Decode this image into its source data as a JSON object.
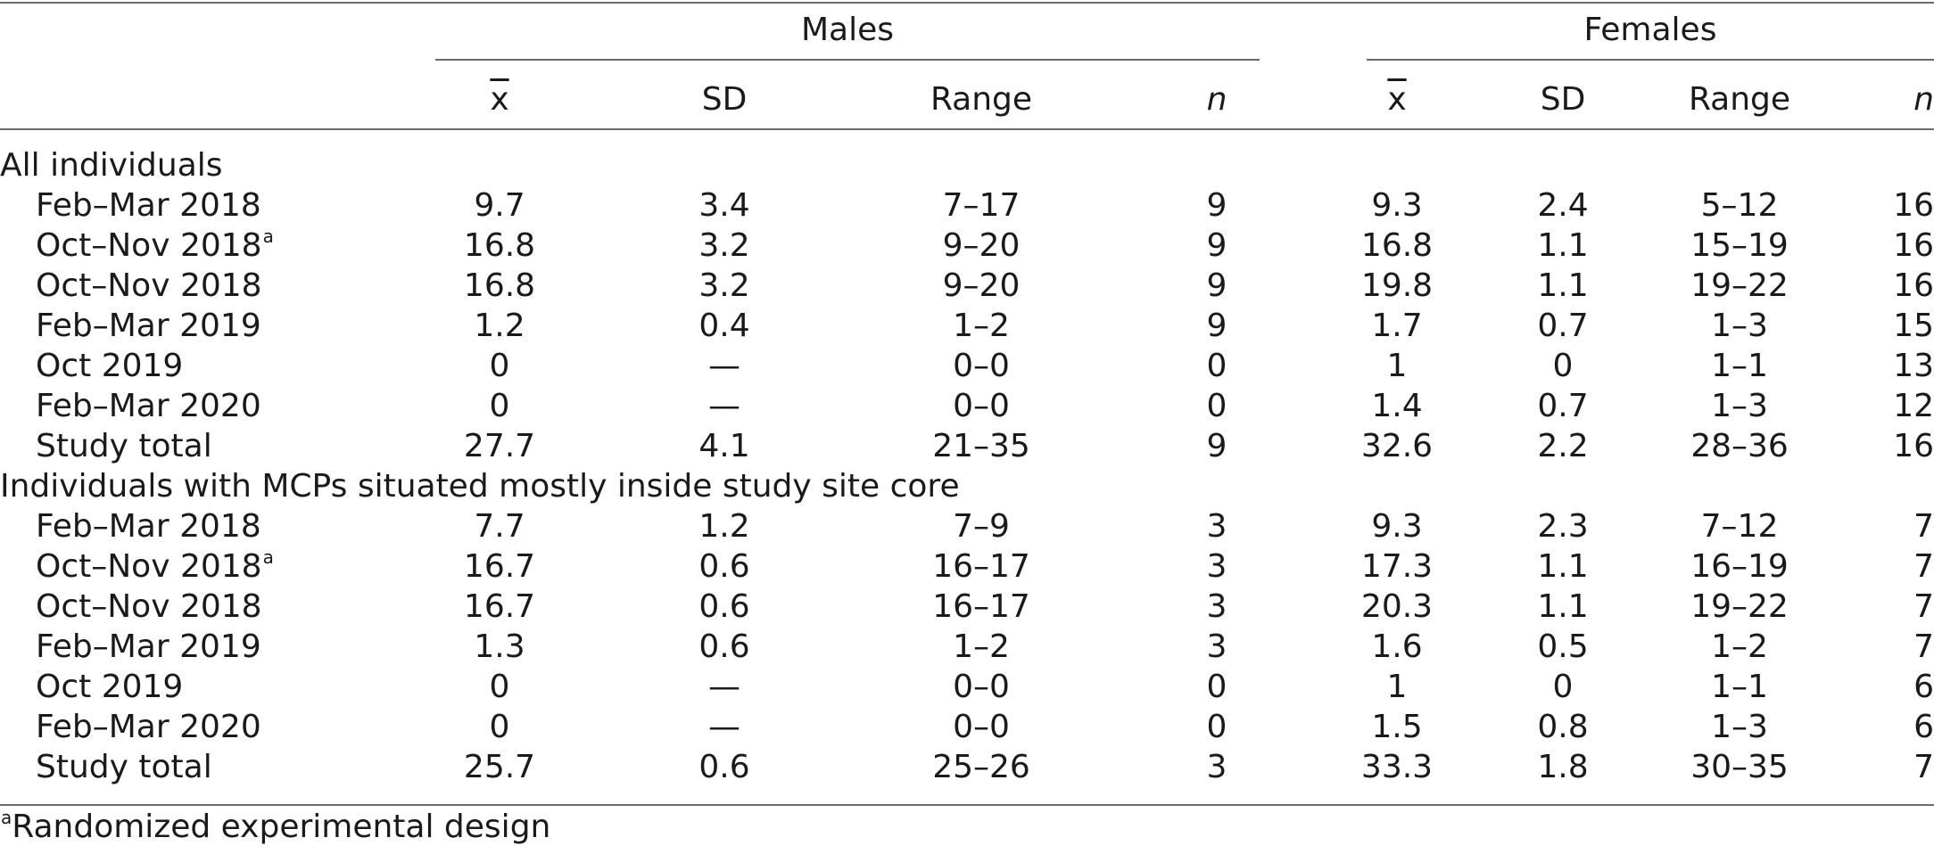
{
  "groups": {
    "males": "Males",
    "females": "Females"
  },
  "columns": [
    "x",
    "SD",
    "Range",
    "n"
  ],
  "sections": [
    {
      "title": "All individuals",
      "rows": [
        {
          "label": "Feb–Mar 2018",
          "sup": "",
          "males": [
            "9.7",
            "3.4",
            "7–17",
            "9"
          ],
          "females": [
            "9.3",
            "2.4",
            "5–12",
            "16"
          ]
        },
        {
          "label": "Oct–Nov 2018",
          "sup": "a",
          "males": [
            "16.8",
            "3.2",
            "9–20",
            "9"
          ],
          "females": [
            "16.8",
            "1.1",
            "15–19",
            "16"
          ]
        },
        {
          "label": "Oct–Nov 2018",
          "sup": "",
          "males": [
            "16.8",
            "3.2",
            "9–20",
            "9"
          ],
          "females": [
            "19.8",
            "1.1",
            "19–22",
            "16"
          ]
        },
        {
          "label": "Feb–Mar 2019",
          "sup": "",
          "males": [
            "1.2",
            "0.4",
            "1–2",
            "9"
          ],
          "females": [
            "1.7",
            "0.7",
            "1–3",
            "15"
          ]
        },
        {
          "label": "Oct 2019",
          "sup": "",
          "males": [
            "0",
            "—",
            "0–0",
            "0"
          ],
          "females": [
            "1",
            "0",
            "1–1",
            "13"
          ]
        },
        {
          "label": "Feb–Mar 2020",
          "sup": "",
          "males": [
            "0",
            "—",
            "0–0",
            "0"
          ],
          "females": [
            "1.4",
            "0.7",
            "1–3",
            "12"
          ]
        },
        {
          "label": "Study total",
          "sup": "",
          "males": [
            "27.7",
            "4.1",
            "21–35",
            "9"
          ],
          "females": [
            "32.6",
            "2.2",
            "28–36",
            "16"
          ]
        }
      ]
    },
    {
      "title": "Individuals with MCPs situated mostly inside study site core",
      "rows": [
        {
          "label": "Feb–Mar 2018",
          "sup": "",
          "males": [
            "7.7",
            "1.2",
            "7–9",
            "3"
          ],
          "females": [
            "9.3",
            "2.3",
            "7–12",
            "7"
          ]
        },
        {
          "label": "Oct–Nov 2018",
          "sup": "a",
          "males": [
            "16.7",
            "0.6",
            "16–17",
            "3"
          ],
          "females": [
            "17.3",
            "1.1",
            "16–19",
            "7"
          ]
        },
        {
          "label": "Oct–Nov 2018",
          "sup": "",
          "males": [
            "16.7",
            "0.6",
            "16–17",
            "3"
          ],
          "females": [
            "20.3",
            "1.1",
            "19–22",
            "7"
          ]
        },
        {
          "label": "Feb–Mar 2019",
          "sup": "",
          "males": [
            "1.3",
            "0.6",
            "1–2",
            "3"
          ],
          "females": [
            "1.6",
            "0.5",
            "1–2",
            "7"
          ]
        },
        {
          "label": "Oct 2019",
          "sup": "",
          "males": [
            "0",
            "—",
            "0–0",
            "0"
          ],
          "females": [
            "1",
            "0",
            "1–1",
            "6"
          ]
        },
        {
          "label": "Feb–Mar 2020",
          "sup": "",
          "males": [
            "0",
            "—",
            "0–0",
            "0"
          ],
          "females": [
            "1.5",
            "0.8",
            "1–3",
            "6"
          ]
        },
        {
          "label": "Study total",
          "sup": "",
          "males": [
            "25.7",
            "0.6",
            "25–26",
            "3"
          ],
          "females": [
            "33.3",
            "1.8",
            "30–35",
            "7"
          ]
        }
      ]
    }
  ],
  "footnote": {
    "mark": "a",
    "text": "Randomized experimental design"
  }
}
